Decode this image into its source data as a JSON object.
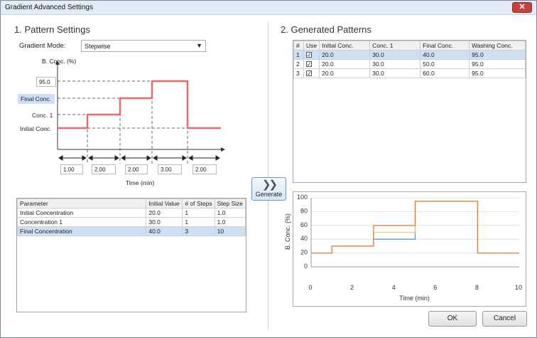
{
  "window": {
    "title": "Gradient Advanced Settings",
    "close_label": "✕"
  },
  "pattern_settings": {
    "heading": "1. Pattern Settings",
    "mode_label": "Gradient Mode:",
    "mode_value": "Stepwise",
    "axis_label": "B. Conc. (%)",
    "time_label": "Time (min)",
    "value_box": "95.0",
    "label_final": "Final Conc.",
    "label_conc1": "Conc. 1",
    "label_initial": "Initial Conc.",
    "durations": [
      "1.00",
      "2.00",
      "2.00",
      "3.00",
      "2.00"
    ]
  },
  "parameter_table": {
    "headers": [
      "Parameter",
      "Initial Value",
      "# of Steps",
      "Step Size"
    ],
    "rows": [
      [
        "Initial Concentration",
        "20.0",
        "1",
        "1.0"
      ],
      [
        "Concentration 1",
        "30.0",
        "1",
        "1.0"
      ],
      [
        "Final Concentration",
        "40.0",
        "3",
        "10"
      ]
    ]
  },
  "generate": {
    "label": "Generate"
  },
  "generated_patterns": {
    "heading": "2. Generated Patterns",
    "headers": [
      "#",
      "Use",
      "Initial Conc.",
      "Conc. 1",
      "Final Conc.",
      "Washing Conc."
    ],
    "rows": [
      [
        "1",
        "✓",
        "20.0",
        "30.0",
        "40.0",
        "95.0"
      ],
      [
        "2",
        "✓",
        "20.0",
        "30.0",
        "50.0",
        "95.0"
      ],
      [
        "3",
        "✓",
        "20.0",
        "30.0",
        "60.0",
        "95.0"
      ]
    ]
  },
  "chart_data": {
    "type": "line",
    "xlabel": "Time (min)",
    "ylabel": "B. Conc. (%)",
    "xlim": [
      0,
      10
    ],
    "ylim": [
      0,
      100
    ],
    "xticks": [
      "0",
      "2",
      "4",
      "6",
      "8",
      "10"
    ],
    "yticks": [
      "0",
      "20",
      "40",
      "60",
      "80",
      "100"
    ],
    "grid": true,
    "series": [
      {
        "color": "#5b9bd5",
        "x": [
          0,
          1,
          1,
          3,
          3,
          5,
          5,
          8,
          8,
          10
        ],
        "y": [
          20,
          20,
          30,
          30,
          40,
          40,
          95,
          95,
          20,
          20
        ]
      },
      {
        "color": "#f2c572",
        "x": [
          0,
          1,
          1,
          3,
          3,
          5,
          5,
          8,
          8,
          10
        ],
        "y": [
          20,
          20,
          30,
          30,
          50,
          50,
          95,
          95,
          20,
          20
        ]
      },
      {
        "color": "#ed7d31",
        "x": [
          0,
          1,
          1,
          3,
          3,
          5,
          5,
          8,
          8,
          10
        ],
        "y": [
          20,
          20,
          30,
          30,
          60,
          60,
          95,
          95,
          20,
          20
        ]
      }
    ]
  },
  "buttons": {
    "ok": "OK",
    "cancel": "Cancel"
  }
}
